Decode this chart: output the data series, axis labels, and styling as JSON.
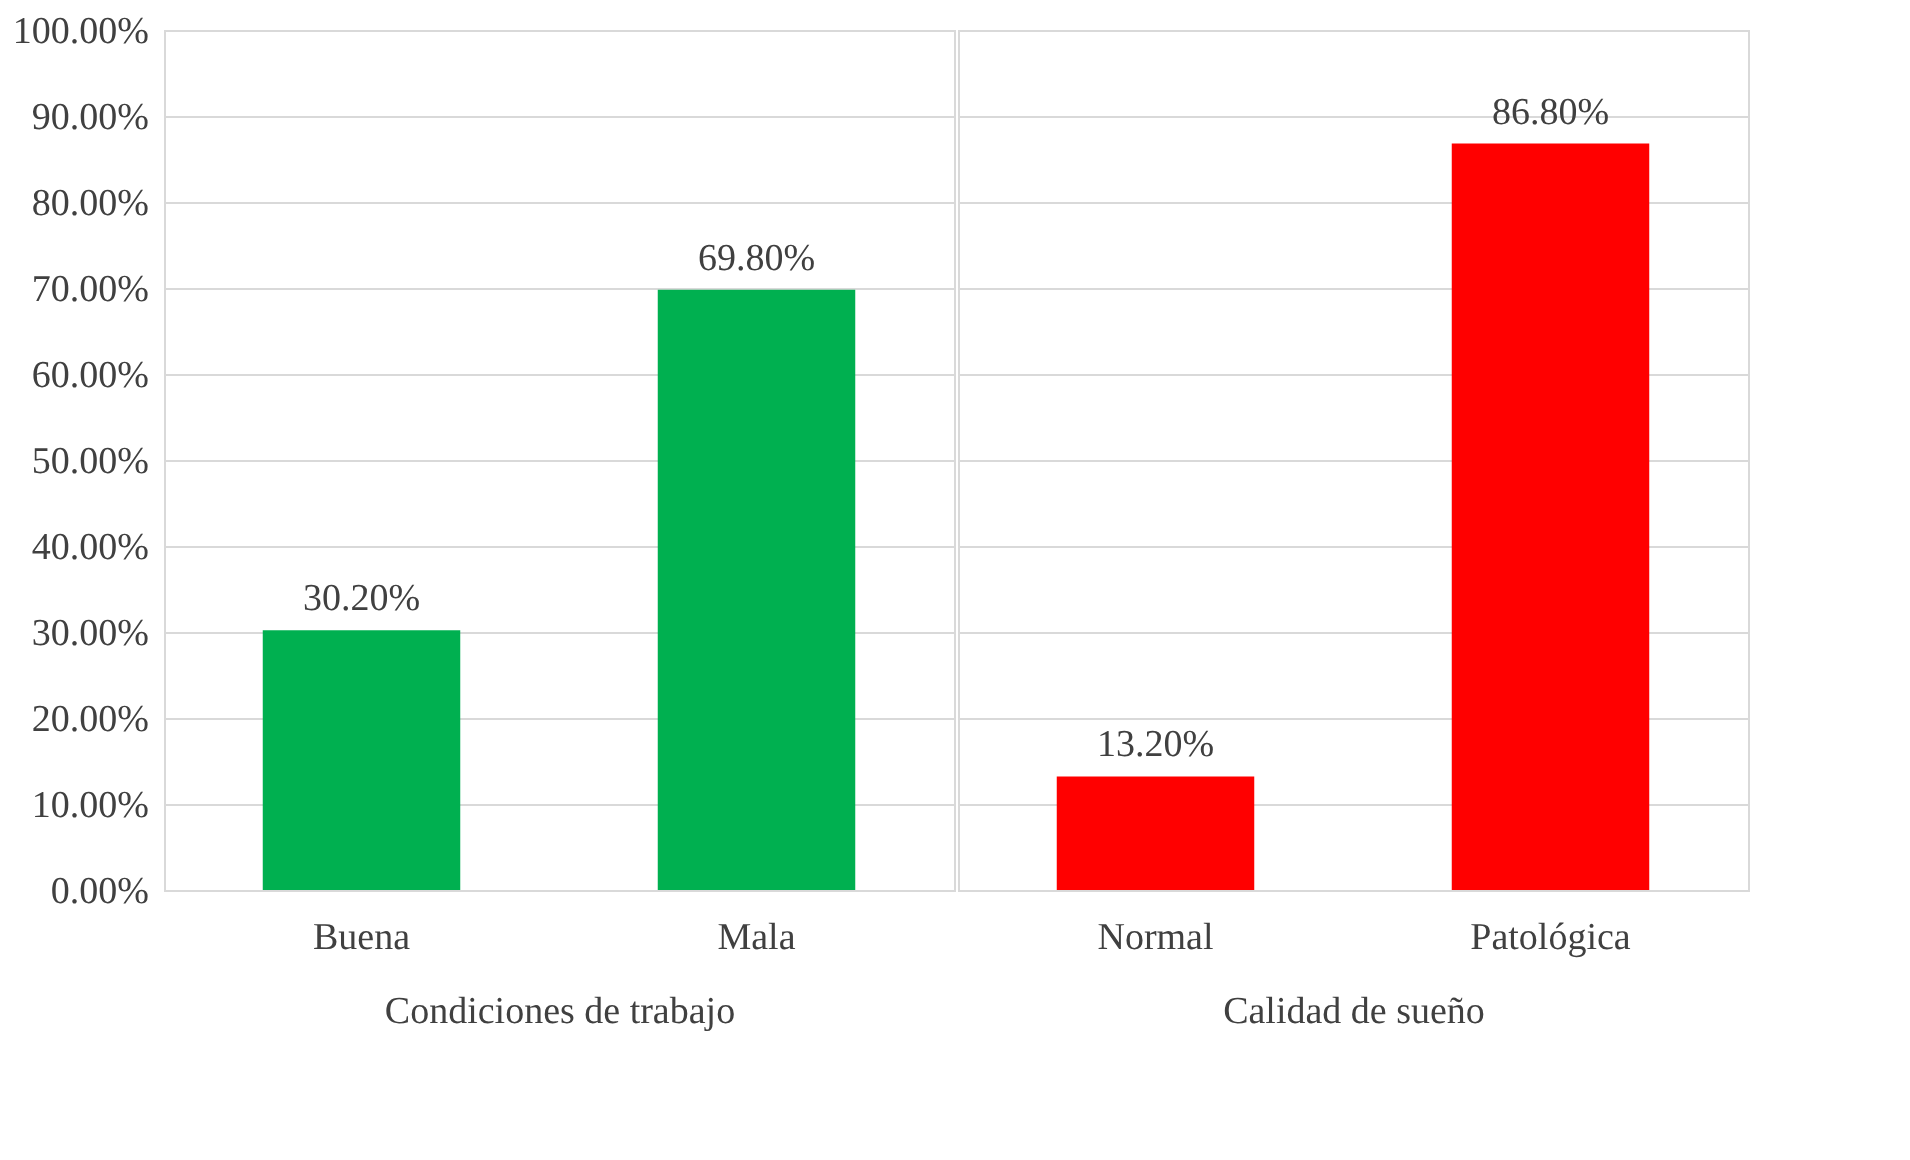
{
  "chart_data": [
    {
      "type": "bar",
      "xlabel": "Condiciones de trabajo",
      "categories": [
        "Buena",
        "Mala"
      ],
      "values": [
        30.2,
        69.8
      ],
      "colors": [
        "#00b050",
        "#00b050"
      ],
      "value_labels": [
        "30.20%",
        "69.80%"
      ],
      "ylim": [
        0,
        100
      ],
      "yticks": [
        {
          "value": 0,
          "label": "0.00%"
        },
        {
          "value": 10,
          "label": "10.00%"
        },
        {
          "value": 20,
          "label": "20.00%"
        },
        {
          "value": 30,
          "label": "30.00%"
        },
        {
          "value": 40,
          "label": "40.00%"
        },
        {
          "value": 50,
          "label": "50.00%"
        },
        {
          "value": 60,
          "label": "60.00%"
        },
        {
          "value": 70,
          "label": "70.00%"
        },
        {
          "value": 80,
          "label": "80.00%"
        },
        {
          "value": 90,
          "label": "90.00%"
        },
        {
          "value": 100,
          "label": "100.00%"
        }
      ],
      "grid": "y"
    },
    {
      "type": "bar",
      "xlabel": "Calidad de sueño",
      "categories": [
        "Normal",
        "Patológica"
      ],
      "values": [
        13.2,
        86.8
      ],
      "colors": [
        "#ff0000",
        "#ff0000"
      ],
      "value_labels": [
        "13.20%",
        "86.80%"
      ],
      "ylim": [
        0,
        100
      ],
      "yticks": [
        {
          "value": 0,
          "label": null
        },
        {
          "value": 10,
          "label": null
        },
        {
          "value": 20,
          "label": null
        },
        {
          "value": 30,
          "label": null
        },
        {
          "value": 40,
          "label": null
        },
        {
          "value": 50,
          "label": null
        },
        {
          "value": 60,
          "label": null
        },
        {
          "value": 70,
          "label": null
        },
        {
          "value": 80,
          "label": null
        },
        {
          "value": 90,
          "label": null
        },
        {
          "value": 100,
          "label": null
        }
      ],
      "grid": "y",
      "tick_labels": "x"
    }
  ]
}
